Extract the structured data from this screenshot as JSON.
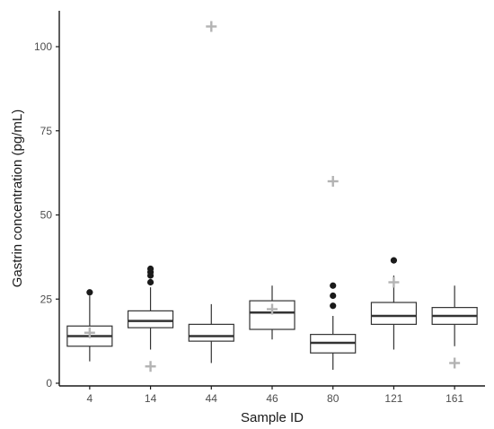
{
  "chart_data": {
    "type": "box",
    "title": "",
    "xlabel": "Sample ID",
    "ylabel": "Gastrin concentration (pg/mL)",
    "ylim": [
      0,
      110
    ],
    "yticks": [
      0,
      25,
      50,
      75,
      100
    ],
    "grid": false,
    "categories": [
      "4",
      "14",
      "44",
      "46",
      "80",
      "121",
      "161"
    ],
    "boxes": [
      {
        "category": "4",
        "whisker_low": 6.5,
        "q1": 11,
        "median": 14,
        "q3": 17,
        "whisker_high": 26,
        "outliers": [
          27
        ]
      },
      {
        "category": "14",
        "whisker_low": 10,
        "q1": 16.5,
        "median": 18.5,
        "q3": 21.5,
        "whisker_high": 28.5,
        "outliers": [
          30,
          32,
          33,
          34
        ]
      },
      {
        "category": "44",
        "whisker_low": 6,
        "q1": 12.5,
        "median": 14,
        "q3": 17.5,
        "whisker_high": 23.5,
        "outliers": []
      },
      {
        "category": "46",
        "whisker_low": 13,
        "q1": 16,
        "median": 21,
        "q3": 24.5,
        "whisker_high": 29,
        "outliers": []
      },
      {
        "category": "80",
        "whisker_low": 4,
        "q1": 9,
        "median": 12,
        "q3": 14.5,
        "whisker_high": 20,
        "outliers": [
          23,
          26,
          29
        ]
      },
      {
        "category": "121",
        "whisker_low": 10,
        "q1": 17.5,
        "median": 20,
        "q3": 24,
        "whisker_high": 32,
        "outliers": [
          36.5
        ]
      },
      {
        "category": "161",
        "whisker_low": 11,
        "q1": 17.5,
        "median": 20,
        "q3": 22.5,
        "whisker_high": 29,
        "outliers": []
      }
    ],
    "markers": [
      {
        "category": "4",
        "value": 15
      },
      {
        "category": "14",
        "value": 5
      },
      {
        "category": "44",
        "value": 106
      },
      {
        "category": "46",
        "value": 22
      },
      {
        "category": "80",
        "value": 60
      },
      {
        "category": "121",
        "value": 30
      },
      {
        "category": "161",
        "value": 6
      }
    ],
    "colors": {
      "box_fill": "#ffffff",
      "box_stroke": "#333333",
      "outlier": "#1a1a1a",
      "marker": "#b3b3b3",
      "axis": "#1a1a1a"
    }
  }
}
